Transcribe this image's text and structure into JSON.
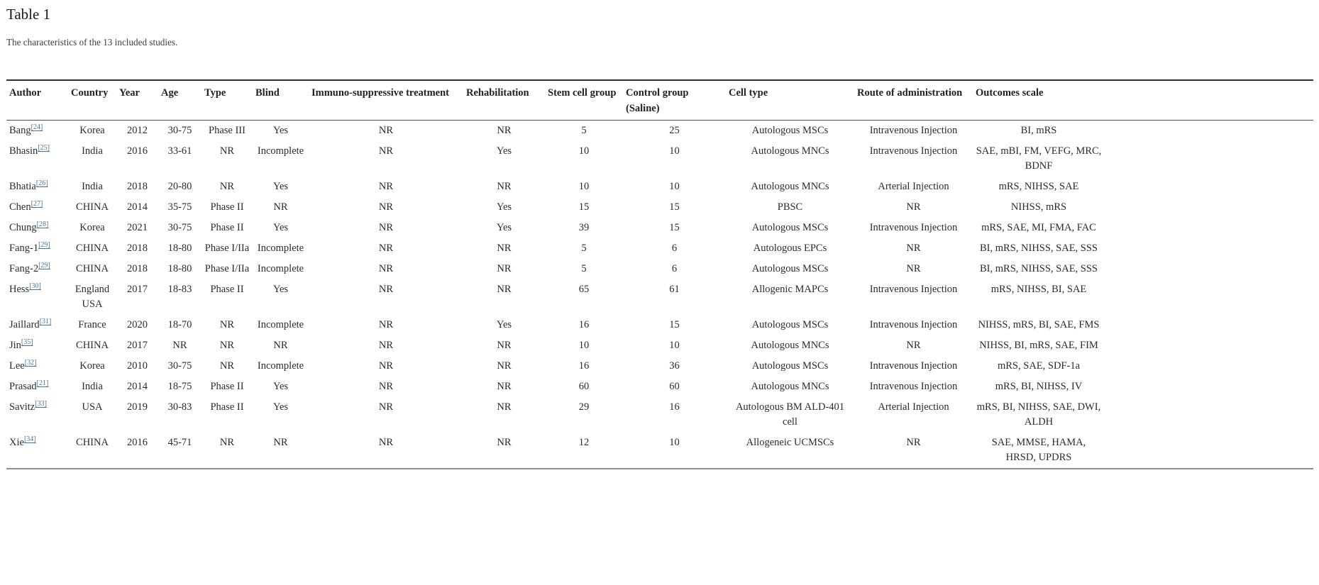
{
  "page": {
    "title": "Table 1",
    "caption": "The characteristics of the 13 included studies."
  },
  "colors": {
    "citation_link": "#4a7391",
    "text": "#2b2b2b",
    "table_top_border": "#2f2f2f",
    "table_bottom_border": "#8e8e8e"
  },
  "table": {
    "columns": [
      {
        "key": "author",
        "label": "Author"
      },
      {
        "key": "country",
        "label": "Country"
      },
      {
        "key": "year",
        "label": "Year"
      },
      {
        "key": "age",
        "label": "Age"
      },
      {
        "key": "type",
        "label": "Type"
      },
      {
        "key": "blind",
        "label": "Blind"
      },
      {
        "key": "immuno",
        "label": "Immuno-suppressive treatment"
      },
      {
        "key": "rehab",
        "label": "Rehabilitation"
      },
      {
        "key": "stem",
        "label": "Stem cell group"
      },
      {
        "key": "control",
        "label": "Control group (Saline)"
      },
      {
        "key": "cell_type",
        "label": "Cell type"
      },
      {
        "key": "route",
        "label": "Route of administration"
      },
      {
        "key": "outcomes",
        "label": "Outcomes scale"
      }
    ],
    "rows": [
      {
        "author": "Bang",
        "ref": "[24]",
        "country": "Korea",
        "year": "2012",
        "age": "30-75",
        "type": "Phase III",
        "blind": "Yes",
        "immuno": "NR",
        "rehab": "NR",
        "stem": "5",
        "control": "25",
        "cell_type": "Autologous MSCs",
        "route": "Intravenous Injection",
        "outcomes": "BI, mRS"
      },
      {
        "author": "Bhasin",
        "ref": "[25]",
        "country": "India",
        "year": "2016",
        "age": "33-61",
        "type": "NR",
        "blind": "Incomplete",
        "immuno": "NR",
        "rehab": "Yes",
        "stem": "10",
        "control": "10",
        "cell_type": "Autologous MNCs",
        "route": "Intravenous Injection",
        "outcomes": "SAE, mBI, FM, VEFG, MRC, BDNF"
      },
      {
        "author": "Bhatia",
        "ref": "[26]",
        "country": "India",
        "year": "2018",
        "age": "20-80",
        "type": "NR",
        "blind": "Yes",
        "immuno": "NR",
        "rehab": "NR",
        "stem": "10",
        "control": "10",
        "cell_type": "Autologous MNCs",
        "route": "Arterial Injection",
        "outcomes": "mRS, NIHSS, SAE"
      },
      {
        "author": "Chen",
        "ref": "[27]",
        "country": "CHINA",
        "year": "2014",
        "age": "35-75",
        "type": "Phase II",
        "blind": "NR",
        "immuno": "NR",
        "rehab": "Yes",
        "stem": "15",
        "control": "15",
        "cell_type": "PBSC",
        "route": "NR",
        "outcomes": "NIHSS, mRS"
      },
      {
        "author": "Chung",
        "ref": "[28]",
        "country": "Korea",
        "year": "2021",
        "age": "30-75",
        "type": "Phase II",
        "blind": "Yes",
        "immuno": "NR",
        "rehab": "Yes",
        "stem": "39",
        "control": "15",
        "cell_type": "Autologous MSCs",
        "route": "Intravenous Injection",
        "outcomes": "mRS, SAE, MI, FMA, FAC"
      },
      {
        "author": "Fang-1",
        "ref": "[29]",
        "country": "CHINA",
        "year": "2018",
        "age": "18-80",
        "type": "Phase I/IIa",
        "blind": "Incomplete",
        "immuno": "NR",
        "rehab": "NR",
        "stem": "5",
        "control": "6",
        "cell_type": "Autologous EPCs",
        "route": "NR",
        "outcomes": "BI, mRS, NIHSS, SAE, SSS"
      },
      {
        "author": "Fang-2",
        "ref": "[29]",
        "country": "CHINA",
        "year": "2018",
        "age": "18-80",
        "type": "Phase I/IIa",
        "blind": "Incomplete",
        "immuno": "NR",
        "rehab": "NR",
        "stem": "5",
        "control": "6",
        "cell_type": "Autologous MSCs",
        "route": "NR",
        "outcomes": "BI, mRS, NIHSS, SAE, SSS"
      },
      {
        "author": "Hess",
        "ref": "[30]",
        "country": "England USA",
        "year": "2017",
        "age": "18-83",
        "type": "Phase II",
        "blind": "Yes",
        "immuno": "NR",
        "rehab": "NR",
        "stem": "65",
        "control": "61",
        "cell_type": "Allogenic MAPCs",
        "route": "Intravenous Injection",
        "outcomes": "mRS, NIHSS, BI, SAE"
      },
      {
        "author": "Jaillard",
        "ref": "[31]",
        "country": "France",
        "year": "2020",
        "age": "18-70",
        "type": "NR",
        "blind": "Incomplete",
        "immuno": "NR",
        "rehab": "Yes",
        "stem": "16",
        "control": "15",
        "cell_type": "Autologous MSCs",
        "route": "Intravenous Injection",
        "outcomes": "NIHSS, mRS, BI, SAE, FMS"
      },
      {
        "author": "Jin",
        "ref": "[35]",
        "country": "CHINA",
        "year": "2017",
        "age": "NR",
        "type": "NR",
        "blind": "NR",
        "immuno": "NR",
        "rehab": "NR",
        "stem": "10",
        "control": "10",
        "cell_type": "Autologous MNCs",
        "route": "NR",
        "outcomes": "NIHSS, BI, mRS, SAE, FIM"
      },
      {
        "author": "Lee",
        "ref": "[32]",
        "country": "Korea",
        "year": "2010",
        "age": "30-75",
        "type": "NR",
        "blind": "Incomplete",
        "immuno": "NR",
        "rehab": "NR",
        "stem": "16",
        "control": "36",
        "cell_type": "Autologous MSCs",
        "route": "Intravenous Injection",
        "outcomes": "mRS, SAE, SDF-1a"
      },
      {
        "author": "Prasad",
        "ref": "[21]",
        "country": "India",
        "year": "2014",
        "age": "18-75",
        "type": "Phase II",
        "blind": "Yes",
        "immuno": "NR",
        "rehab": "NR",
        "stem": "60",
        "control": "60",
        "cell_type": "Autologous MNCs",
        "route": "Intravenous Injection",
        "outcomes": "mRS, BI, NIHSS, IV"
      },
      {
        "author": "Savitz",
        "ref": "[33]",
        "country": "USA",
        "year": "2019",
        "age": "30-83",
        "type": "Phase II",
        "blind": "Yes",
        "immuno": "NR",
        "rehab": "NR",
        "stem": "29",
        "control": "16",
        "cell_type": "Autologous BM ALD-401 cell",
        "route": "Arterial Injection",
        "outcomes": "mRS, BI, NIHSS, SAE, DWI, ALDH"
      },
      {
        "author": "Xie",
        "ref": "[34]",
        "country": "CHINA",
        "year": "2016",
        "age": "45-71",
        "type": "NR",
        "blind": "NR",
        "immuno": "NR",
        "rehab": "NR",
        "stem": "12",
        "control": "10",
        "cell_type": "Allogeneic UCMSCs",
        "route": "NR",
        "outcomes": "SAE, MMSE, HAMA, HRSD, UPDRS"
      }
    ]
  }
}
